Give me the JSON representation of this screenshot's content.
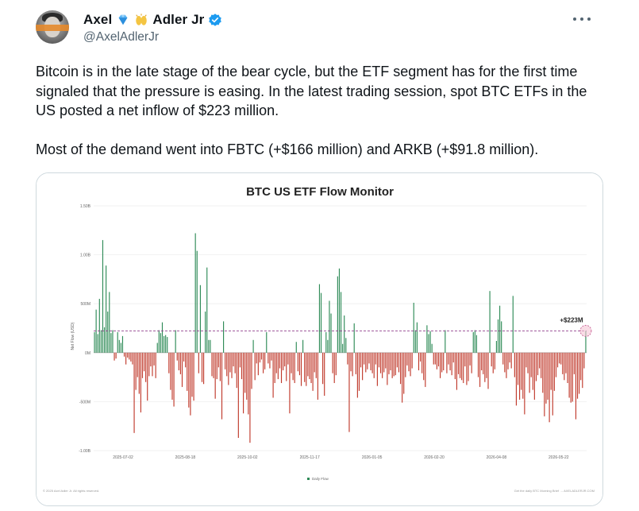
{
  "author": {
    "display_name_first": "Axel",
    "display_name_last": "Adler Jr",
    "handle": "@AxelAdlerJr",
    "avatar_icon": "profile-photo-icon",
    "badges": [
      "gem-icon",
      "raising-hands-icon",
      "verified-badge-icon"
    ]
  },
  "tweet": {
    "paragraphs": [
      "Bitcoin is in the late stage of the bear cycle, but the ETF segment has for the first time signaled that the pressure is easing. In the latest trading session, spot BTC ETFs in the US posted a net inflow of $223 million.",
      "Most of the demand went into FBTC (+$166 million) and ARKB (+$91.8 million)."
    ]
  },
  "chart_data": {
    "type": "bar",
    "title": "BTC US ETF Flow Monitor",
    "ylabel": "Net Flow (USD)",
    "ylim": [
      -1000,
      1500
    ],
    "y_tick_labels": [
      "1.50B",
      "1.00B",
      "500M",
      "0M",
      "-500M",
      "-1.00B"
    ],
    "y_ticks": [
      1500,
      1000,
      500,
      0,
      -500,
      -1000
    ],
    "x_tick_labels": [
      "2025-07-02",
      "2025-08-18",
      "2025-10-02",
      "2025-11-17",
      "2026-01-05",
      "2026-02-20",
      "2026-04-08",
      "2026-05-22"
    ],
    "legend": [
      "Daily Flow"
    ],
    "legend_position": "bottom-center",
    "reference_line": 223,
    "annotation": "+$223M",
    "footer_left": "© 2025 Axel Adler Jr. All rights reserved.",
    "footer_right": "Get the daily BTC Morning Brief → AXELADLERJR.COM",
    "positive_color": "#2e8b57",
    "negative_color": "#c0392b",
    "values": [
      210,
      440,
      190,
      550,
      230,
      1150,
      260,
      890,
      420,
      620,
      200,
      230,
      -80,
      -60,
      210,
      130,
      100,
      170,
      -40,
      -120,
      -50,
      -70,
      -90,
      -120,
      -820,
      -380,
      -250,
      -420,
      -610,
      -260,
      -190,
      -300,
      -490,
      -240,
      -140,
      -240,
      -130,
      -260,
      100,
      230,
      200,
      310,
      170,
      180,
      160,
      -210,
      -380,
      -480,
      -550,
      230,
      -80,
      -180,
      -220,
      -350,
      -90,
      -150,
      -390,
      -560,
      -640,
      -450,
      -490,
      1220,
      1040,
      -210,
      690,
      -300,
      -320,
      420,
      870,
      130,
      130,
      -240,
      -260,
      -470,
      -270,
      -150,
      -290,
      -680,
      320,
      -170,
      -240,
      -330,
      -200,
      -260,
      -140,
      -210,
      -360,
      -870,
      -150,
      -270,
      -620,
      -410,
      -480,
      -630,
      -920,
      -370,
      130,
      -280,
      -110,
      -230,
      -100,
      -70,
      -210,
      -170,
      210,
      -110,
      -160,
      -80,
      -460,
      -310,
      -210,
      -270,
      -160,
      -310,
      -180,
      -140,
      -290,
      -120,
      -620,
      -210,
      -280,
      -310,
      110,
      -190,
      -230,
      -340,
      130,
      -300,
      -340,
      -240,
      -270,
      -310,
      -390,
      -200,
      -260,
      -480,
      700,
      610,
      -320,
      -440,
      210,
      130,
      530,
      400,
      -210,
      -310,
      -230,
      780,
      860,
      620,
      90,
      380,
      150,
      -120,
      -810,
      -190,
      -240,
      300,
      -220,
      -460,
      -390,
      -150,
      -280,
      -120,
      -200,
      -170,
      -110,
      -180,
      -210,
      -260,
      -120,
      -340,
      -150,
      -210,
      -260,
      -200,
      -160,
      -330,
      -220,
      -180,
      -260,
      -240,
      -230,
      -150,
      -200,
      -320,
      -510,
      -420,
      -250,
      -130,
      -190,
      -240,
      -160,
      510,
      230,
      310,
      -180,
      -90,
      -210,
      -280,
      -350,
      280,
      190,
      220,
      90,
      -120,
      -120,
      -170,
      -140,
      -260,
      -200,
      -180,
      230,
      -210,
      -120,
      -180,
      -230,
      -100,
      -270,
      -380,
      -220,
      -260,
      -280,
      -310,
      -140,
      -330,
      -290,
      -130,
      -210,
      210,
      230,
      180,
      -250,
      -350,
      -180,
      -220,
      -300,
      -260,
      -370,
      630,
      -140,
      -210,
      -170,
      120,
      340,
      480,
      320,
      -120,
      -200,
      -260,
      -170,
      -100,
      -160,
      580,
      -250,
      -540,
      -330,
      -480,
      -380,
      -470,
      -630,
      -150,
      -210,
      -410,
      -250,
      -380,
      -480,
      -290,
      -230,
      -160,
      -260,
      -410,
      -650,
      -520,
      -480,
      -710,
      -380,
      -640,
      -390,
      -250,
      -150,
      -110,
      -120,
      -220,
      -280,
      -210,
      -310,
      -460,
      -510,
      -500,
      -220,
      -680,
      -470,
      -420,
      -280,
      -360,
      -160,
      223
    ]
  }
}
